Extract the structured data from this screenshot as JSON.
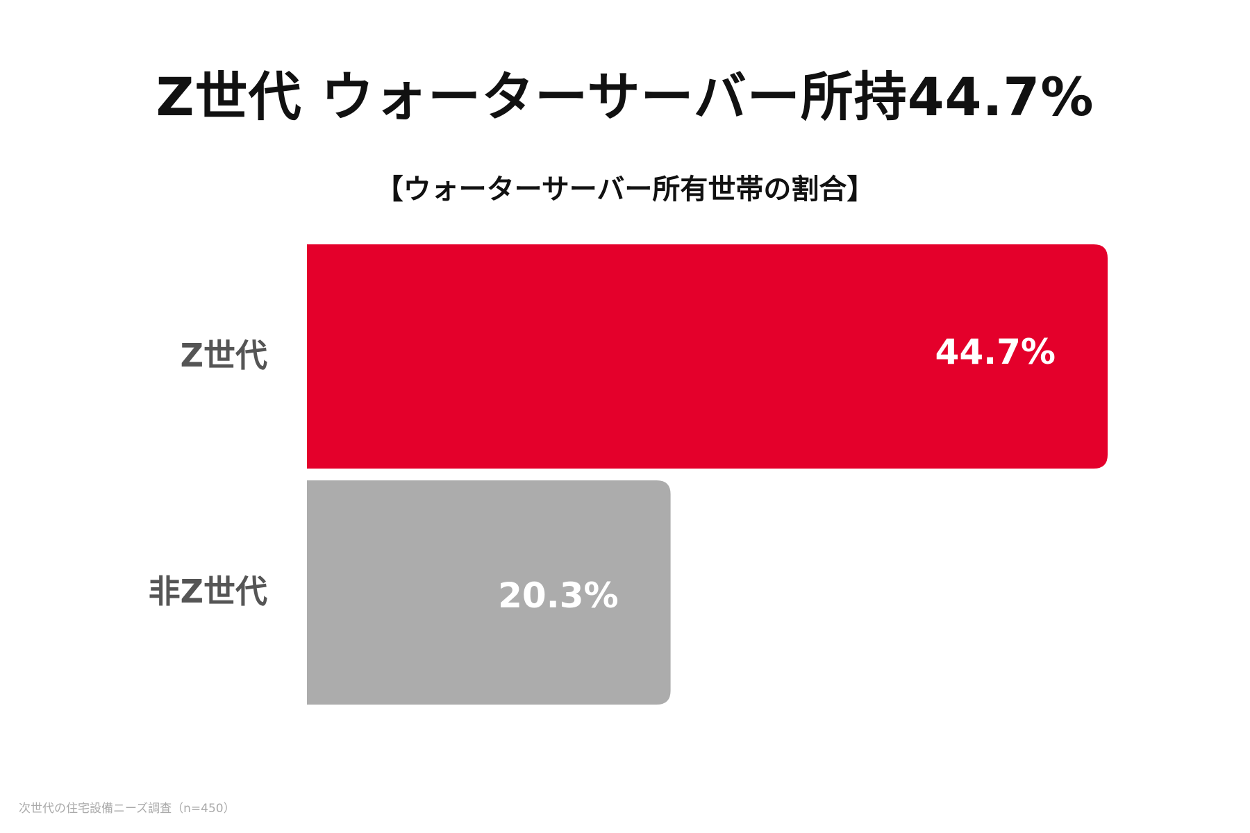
{
  "title": "Z世代 ウォーターサーバー所持44.7%",
  "subtitle": "【ウォーターサーバー所有世帯の割合】",
  "source": "次世代の住宅設備ニーズ調査（n=450）",
  "chart_data": {
    "type": "bar",
    "orientation": "horizontal",
    "categories": [
      "Z世代",
      "非Z世代"
    ],
    "values": [
      44.7,
      20.3
    ],
    "value_labels": [
      "44.7%",
      "20.3%"
    ],
    "unit": "%",
    "colors": [
      "#e4002b",
      "#acacac"
    ],
    "xlim": [
      0,
      44.7
    ],
    "grid": false,
    "legend": "none"
  }
}
